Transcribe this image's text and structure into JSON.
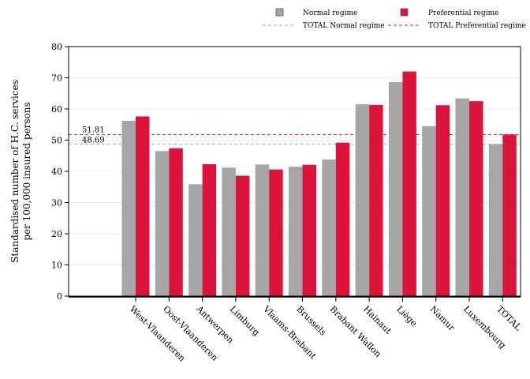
{
  "chart_data": {
    "type": "bar",
    "title": "",
    "xlabel": "",
    "ylabel_lines": [
      "Standardised number of H.C. services",
      "per 100,000 insured persons"
    ],
    "ylim": [
      0,
      80
    ],
    "yticks": [
      0,
      10,
      20,
      30,
      40,
      50,
      60,
      70,
      80
    ],
    "categories": [
      "West-Vlaanderen",
      "Oost-Vlaanderen",
      "Antwerpen",
      "Limburg",
      "Vlaams-Brabant",
      "Brussels",
      "Brabant Wallon",
      "Hainaut",
      "Liège",
      "Namur",
      "Luxembourg",
      "TOTAL"
    ],
    "series": [
      {
        "name": "Normal regime",
        "color": "#a6a6a6",
        "values": [
          56.2,
          46.5,
          35.9,
          41.2,
          42.2,
          41.5,
          43.8,
          61.5,
          68.6,
          54.5,
          63.4,
          48.69
        ]
      },
      {
        "name": "Preferential regime",
        "color": "#dc143c",
        "values": [
          57.6,
          47.4,
          42.3,
          38.6,
          40.6,
          42.1,
          49.2,
          61.3,
          72.0,
          61.2,
          62.5,
          51.81
        ]
      }
    ],
    "reference_lines": [
      {
        "name": "TOTAL Normal regime",
        "value": 48.69,
        "label": "48.69",
        "color": "#a6a6a6",
        "style": "dashed"
      },
      {
        "name": "TOTAL Preferential regime",
        "value": 51.81,
        "label": "51.81",
        "color": "#dc143c",
        "style": "dashed"
      }
    ],
    "legend_position": "top-right",
    "grid": "horizontal"
  }
}
